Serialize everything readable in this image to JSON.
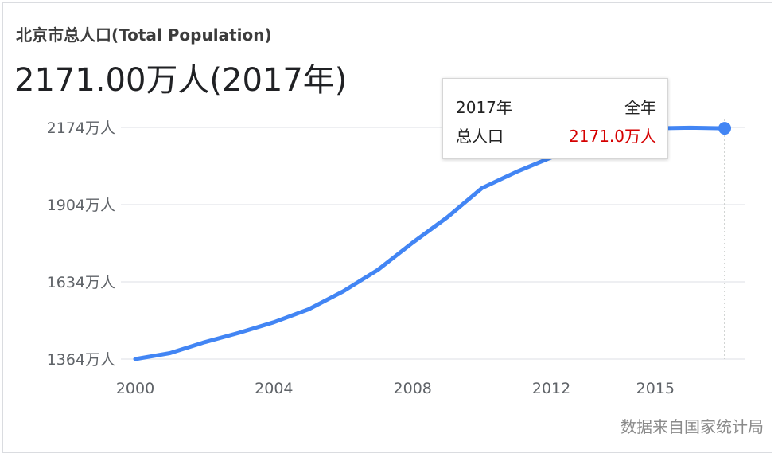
{
  "title": "北京市总人口(Total Population)",
  "headline": "2171.00万人(2017年)",
  "source": "数据来自国家统计局",
  "tooltip": {
    "year": "2017年",
    "period": "全年",
    "metric": "总人口",
    "value": "2171.0万人"
  },
  "colors": {
    "line": "#4285f4",
    "tooltip_value": "#d50000",
    "grid": "#e8eaed"
  },
  "chart_data": {
    "type": "line",
    "title": "北京市总人口(Total Population)",
    "xlabel": "",
    "ylabel": "",
    "grid": true,
    "y_ticks": [
      {
        "value": 1364,
        "label": "1364万人"
      },
      {
        "value": 1634,
        "label": "1634万人"
      },
      {
        "value": 1904,
        "label": "1904万人"
      },
      {
        "value": 2174,
        "label": "2174万人"
      }
    ],
    "x_ticks": [
      {
        "value": 2000,
        "label": "2000"
      },
      {
        "value": 2004,
        "label": "2004"
      },
      {
        "value": 2008,
        "label": "2008"
      },
      {
        "value": 2012,
        "label": "2012"
      },
      {
        "value": 2015,
        "label": "2015"
      }
    ],
    "ylim": [
      1364,
      2174
    ],
    "xlim": [
      2000,
      2017
    ],
    "series": [
      {
        "x": [
          2000,
          2001,
          2002,
          2003,
          2004,
          2005,
          2006,
          2007,
          2008,
          2009,
          2010,
          2011,
          2012,
          2013,
          2014,
          2015,
          2016,
          2017
        ],
        "values": [
          1364,
          1385,
          1423,
          1456,
          1493,
          1538,
          1601,
          1676,
          1771,
          1860,
          1962,
          2019,
          2069,
          2115,
          2152,
          2171,
          2173,
          2171
        ]
      }
    ],
    "highlight": {
      "x": 2017,
      "value": 2171.0
    }
  }
}
